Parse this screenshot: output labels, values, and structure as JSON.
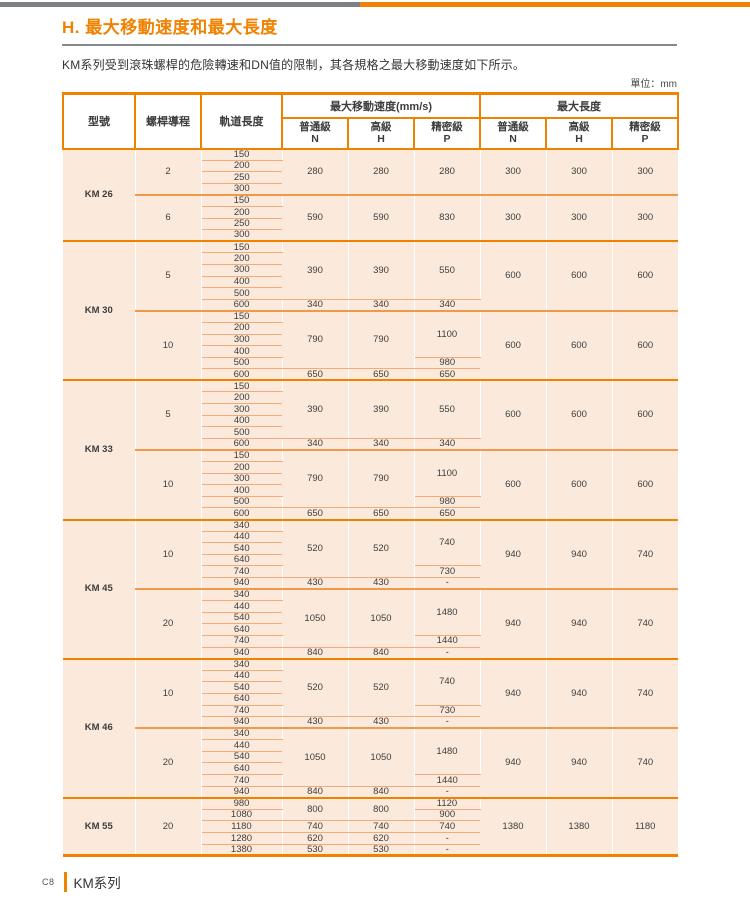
{
  "page": {
    "title": "H. 最大移動速度和最大長度",
    "description": "KM系列受到滾珠螺桿的危險轉速和DN值的限制，其各規格之最大移動速度如下所示。",
    "unit_label": "單位：mm",
    "footer": {
      "page_number": "C8",
      "series_label": "KM系列"
    }
  },
  "colors": {
    "accent_orange": "#EF8200",
    "model_cell_orange": "#F08125",
    "model_cell_gray": "#A4A6A9",
    "topbar_gray": "#7E8184",
    "body_peach": "#FBEADB",
    "row_line_orange": "#F3AC79",
    "group_line_orange": "#F0994C"
  },
  "table": {
    "columns": {
      "model": "型號",
      "lead": "螺桿導程",
      "rail": "軌道長度",
      "speed_group": "最大移動速度(mm/s)",
      "length_group": "最大長度",
      "grades": [
        {
          "label": "普通級",
          "code": "N"
        },
        {
          "label": "高級",
          "code": "H"
        },
        {
          "label": "精密級",
          "code": "P"
        }
      ]
    },
    "models": [
      {
        "name": "KM 26",
        "color": "orange",
        "groups": [
          {
            "lead": "2",
            "rails": [
              "150",
              "200",
              "250",
              "300"
            ],
            "speed": {
              "N": [
                {
                  "v": "280",
                  "span": 4
                }
              ],
              "H": [
                {
                  "v": "280",
                  "span": 4
                }
              ],
              "P": [
                {
                  "v": "280",
                  "span": 4
                }
              ]
            },
            "length": {
              "N": "300",
              "H": "300",
              "P": "300"
            }
          },
          {
            "lead": "6",
            "rails": [
              "150",
              "200",
              "250",
              "300"
            ],
            "speed": {
              "N": [
                {
                  "v": "590",
                  "span": 4
                }
              ],
              "H": [
                {
                  "v": "590",
                  "span": 4
                }
              ],
              "P": [
                {
                  "v": "830",
                  "span": 4
                }
              ]
            },
            "length": {
              "N": "300",
              "H": "300",
              "P": "300"
            }
          }
        ]
      },
      {
        "name": "KM 30",
        "color": "gray",
        "groups": [
          {
            "lead": "5",
            "rails": [
              "150",
              "200",
              "300",
              "400",
              "500",
              "600"
            ],
            "speed": {
              "N": [
                {
                  "v": "390",
                  "span": 5
                },
                {
                  "v": "340",
                  "span": 1
                }
              ],
              "H": [
                {
                  "v": "390",
                  "span": 5
                },
                {
                  "v": "340",
                  "span": 1
                }
              ],
              "P": [
                {
                  "v": "550",
                  "span": 5
                },
                {
                  "v": "340",
                  "span": 1
                }
              ]
            },
            "length": {
              "N": "600",
              "H": "600",
              "P": "600"
            }
          },
          {
            "lead": "10",
            "rails": [
              "150",
              "200",
              "300",
              "400",
              "500",
              "600"
            ],
            "speed": {
              "N": [
                {
                  "v": "790",
                  "span": 5
                },
                {
                  "v": "650",
                  "span": 1
                }
              ],
              "H": [
                {
                  "v": "790",
                  "span": 5
                },
                {
                  "v": "650",
                  "span": 1
                }
              ],
              "P": [
                {
                  "v": "1100",
                  "span": 4
                },
                {
                  "v": "980",
                  "span": 1
                },
                {
                  "v": "650",
                  "span": 1
                }
              ]
            },
            "length": {
              "N": "600",
              "H": "600",
              "P": "600"
            }
          }
        ]
      },
      {
        "name": "KM 33",
        "color": "orange",
        "groups": [
          {
            "lead": "5",
            "rails": [
              "150",
              "200",
              "300",
              "400",
              "500",
              "600"
            ],
            "speed": {
              "N": [
                {
                  "v": "390",
                  "span": 5
                },
                {
                  "v": "340",
                  "span": 1
                }
              ],
              "H": [
                {
                  "v": "390",
                  "span": 5
                },
                {
                  "v": "340",
                  "span": 1
                }
              ],
              "P": [
                {
                  "v": "550",
                  "span": 5
                },
                {
                  "v": "340",
                  "span": 1
                }
              ]
            },
            "length": {
              "N": "600",
              "H": "600",
              "P": "600"
            }
          },
          {
            "lead": "10",
            "rails": [
              "150",
              "200",
              "300",
              "400",
              "500",
              "600"
            ],
            "speed": {
              "N": [
                {
                  "v": "790",
                  "span": 5
                },
                {
                  "v": "650",
                  "span": 1
                }
              ],
              "H": [
                {
                  "v": "790",
                  "span": 5
                },
                {
                  "v": "650",
                  "span": 1
                }
              ],
              "P": [
                {
                  "v": "1100",
                  "span": 4
                },
                {
                  "v": "980",
                  "span": 1
                },
                {
                  "v": "650",
                  "span": 1
                }
              ]
            },
            "length": {
              "N": "600",
              "H": "600",
              "P": "600"
            }
          }
        ]
      },
      {
        "name": "KM 45",
        "color": "gray",
        "groups": [
          {
            "lead": "10",
            "rails": [
              "340",
              "440",
              "540",
              "640",
              "740",
              "940"
            ],
            "speed": {
              "N": [
                {
                  "v": "520",
                  "span": 5
                },
                {
                  "v": "430",
                  "span": 1
                }
              ],
              "H": [
                {
                  "v": "520",
                  "span": 5
                },
                {
                  "v": "430",
                  "span": 1
                }
              ],
              "P": [
                {
                  "v": "740",
                  "span": 4
                },
                {
                  "v": "730",
                  "span": 1
                },
                {
                  "v": "-",
                  "span": 1
                }
              ]
            },
            "length": {
              "N": "940",
              "H": "940",
              "P": "740"
            }
          },
          {
            "lead": "20",
            "rails": [
              "340",
              "440",
              "540",
              "640",
              "740",
              "940"
            ],
            "speed": {
              "N": [
                {
                  "v": "1050",
                  "span": 5
                },
                {
                  "v": "840",
                  "span": 1
                }
              ],
              "H": [
                {
                  "v": "1050",
                  "span": 5
                },
                {
                  "v": "840",
                  "span": 1
                }
              ],
              "P": [
                {
                  "v": "1480",
                  "span": 4
                },
                {
                  "v": "1440",
                  "span": 1
                },
                {
                  "v": "-",
                  "span": 1
                }
              ]
            },
            "length": {
              "N": "940",
              "H": "940",
              "P": "740"
            }
          }
        ]
      },
      {
        "name": "KM 46",
        "color": "orange",
        "groups": [
          {
            "lead": "10",
            "rails": [
              "340",
              "440",
              "540",
              "640",
              "740",
              "940"
            ],
            "speed": {
              "N": [
                {
                  "v": "520",
                  "span": 5
                },
                {
                  "v": "430",
                  "span": 1
                }
              ],
              "H": [
                {
                  "v": "520",
                  "span": 5
                },
                {
                  "v": "430",
                  "span": 1
                }
              ],
              "P": [
                {
                  "v": "740",
                  "span": 4
                },
                {
                  "v": "730",
                  "span": 1
                },
                {
                  "v": "-",
                  "span": 1
                }
              ]
            },
            "length": {
              "N": "940",
              "H": "940",
              "P": "740"
            }
          },
          {
            "lead": "20",
            "rails": [
              "340",
              "440",
              "540",
              "640",
              "740",
              "940"
            ],
            "speed": {
              "N": [
                {
                  "v": "1050",
                  "span": 5
                },
                {
                  "v": "840",
                  "span": 1
                }
              ],
              "H": [
                {
                  "v": "1050",
                  "span": 5
                },
                {
                  "v": "840",
                  "span": 1
                }
              ],
              "P": [
                {
                  "v": "1480",
                  "span": 4
                },
                {
                  "v": "1440",
                  "span": 1
                },
                {
                  "v": "-",
                  "span": 1
                }
              ]
            },
            "length": {
              "N": "940",
              "H": "940",
              "P": "740"
            }
          }
        ]
      },
      {
        "name": "KM 55",
        "color": "gray",
        "groups": [
          {
            "lead": "20",
            "rails": [
              "980",
              "1080",
              "1180",
              "1280",
              "1380"
            ],
            "speed": {
              "N": [
                {
                  "v": "800",
                  "span": 2
                },
                {
                  "v": "740",
                  "span": 1
                },
                {
                  "v": "620",
                  "span": 1
                },
                {
                  "v": "530",
                  "span": 1
                }
              ],
              "H": [
                {
                  "v": "800",
                  "span": 2
                },
                {
                  "v": "740",
                  "span": 1
                },
                {
                  "v": "620",
                  "span": 1
                },
                {
                  "v": "530",
                  "span": 1
                }
              ],
              "P": [
                {
                  "v": "1120",
                  "span": 1
                },
                {
                  "v": "900",
                  "span": 1
                },
                {
                  "v": "740",
                  "span": 1
                },
                {
                  "v": "-",
                  "span": 1
                },
                {
                  "v": "-",
                  "span": 1
                }
              ]
            },
            "length": {
              "N": "1380",
              "H": "1380",
              "P": "1180"
            }
          }
        ]
      }
    ]
  }
}
